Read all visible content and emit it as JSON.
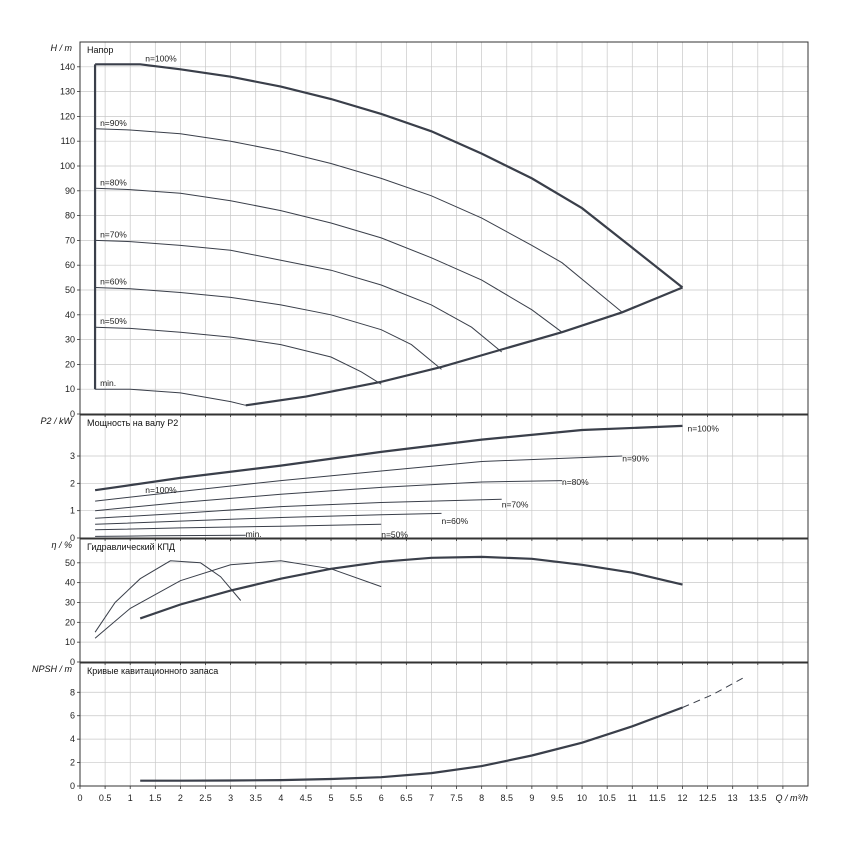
{
  "chart_data": [
    {
      "type": "line",
      "title": "Напор",
      "ylabel": "H / m",
      "xlim": [
        0,
        14.5
      ],
      "ylim": [
        0,
        150
      ],
      "y_ticks": [
        0,
        10,
        20,
        30,
        40,
        50,
        60,
        70,
        80,
        90,
        100,
        110,
        120,
        130,
        140
      ],
      "grid": true,
      "curve_labels": [
        "n=100%",
        "n=90%",
        "n=80%",
        "n=70%",
        "n=60%",
        "n=50%",
        "min."
      ],
      "series": [
        {
          "name": "n=100%",
          "x": [
            0.3,
            1.2,
            2.0,
            3.0,
            4.0,
            5.0,
            6.0,
            7.0,
            8.0,
            9.0,
            10.0,
            11.0,
            12.0
          ],
          "y": [
            141,
            141,
            139,
            136,
            132,
            127,
            121,
            114,
            105,
            95,
            83,
            67,
            51
          ]
        },
        {
          "name": "n=90%",
          "x": [
            0.3,
            1.0,
            2.0,
            3.0,
            4.0,
            5.0,
            6.0,
            7.0,
            8.0,
            9.0,
            9.6,
            10.8
          ],
          "y": [
            115,
            114.5,
            113,
            110,
            106,
            101,
            95,
            88,
            79,
            68,
            61,
            41
          ]
        },
        {
          "name": "n=80%",
          "x": [
            0.3,
            1.0,
            2.0,
            3.0,
            4.0,
            5.0,
            6.0,
            7.0,
            8.0,
            9.0,
            9.6
          ],
          "y": [
            91,
            90.5,
            89,
            86,
            82,
            77,
            71,
            63,
            54,
            42,
            33
          ]
        },
        {
          "name": "n=70%",
          "x": [
            0.3,
            1.0,
            2.0,
            3.0,
            4.0,
            5.0,
            6.0,
            7.0,
            7.8,
            8.4
          ],
          "y": [
            70,
            69.5,
            68,
            66,
            62,
            58,
            52,
            44,
            35,
            25
          ]
        },
        {
          "name": "n=60%",
          "x": [
            0.3,
            1.0,
            2.0,
            3.0,
            4.0,
            5.0,
            6.0,
            6.6,
            7.2
          ],
          "y": [
            51,
            50.5,
            49,
            47,
            44,
            40,
            34,
            28,
            18
          ]
        },
        {
          "name": "n=50%",
          "x": [
            0.3,
            1.0,
            2.0,
            3.0,
            4.0,
            5.0,
            5.6,
            6.0
          ],
          "y": [
            35,
            34.5,
            33,
            31,
            28,
            23,
            17,
            12
          ]
        },
        {
          "name": "min.",
          "x": [
            0.3,
            1.0,
            2.0,
            3.0,
            3.3
          ],
          "y": [
            10,
            10,
            8.5,
            5,
            3.5
          ]
        }
      ],
      "envelope_lower": {
        "x": [
          3.3,
          4.5,
          6.0,
          7.2,
          8.4,
          9.6,
          10.8,
          12.0
        ],
        "y": [
          3.5,
          7,
          13,
          19,
          26,
          33,
          41,
          51
        ]
      }
    },
    {
      "type": "line",
      "title": "Мощность на валу P2",
      "ylabel": "P2 / kW",
      "xlim": [
        0,
        14.5
      ],
      "ylim": [
        0,
        4.5
      ],
      "y_ticks": [
        0,
        1,
        2,
        3
      ],
      "grid": true,
      "curve_labels": [
        "n=100%",
        "n=100%",
        "n=90%",
        "n=80%",
        "n=70%",
        "n=60%",
        "n=50%",
        "min."
      ],
      "series": [
        {
          "name": "n=100%",
          "x": [
            0.3,
            2.0,
            4.0,
            6.0,
            8.0,
            10.0,
            12.0
          ],
          "y": [
            1.75,
            2.2,
            2.65,
            3.15,
            3.6,
            3.95,
            4.1
          ]
        },
        {
          "name": "n=90%",
          "x": [
            0.3,
            2.0,
            4.0,
            6.0,
            8.0,
            10.8
          ],
          "y": [
            1.35,
            1.7,
            2.1,
            2.45,
            2.8,
            3.0
          ]
        },
        {
          "name": "n=80%",
          "x": [
            0.3,
            2.0,
            4.0,
            6.0,
            8.0,
            9.6
          ],
          "y": [
            1.0,
            1.3,
            1.6,
            1.85,
            2.05,
            2.1
          ]
        },
        {
          "name": "n=70%",
          "x": [
            0.3,
            2.0,
            4.0,
            6.0,
            8.4
          ],
          "y": [
            0.72,
            0.9,
            1.15,
            1.3,
            1.42
          ]
        },
        {
          "name": "n=60%",
          "x": [
            0.3,
            2.0,
            4.0,
            6.0,
            7.2
          ],
          "y": [
            0.5,
            0.62,
            0.75,
            0.85,
            0.9
          ]
        },
        {
          "name": "n=50%",
          "x": [
            0.3,
            2.0,
            4.0,
            6.0
          ],
          "y": [
            0.3,
            0.37,
            0.43,
            0.5
          ]
        },
        {
          "name": "min.",
          "x": [
            0.3,
            1.5,
            3.3
          ],
          "y": [
            0.06,
            0.08,
            0.1
          ]
        }
      ]
    },
    {
      "type": "line",
      "title": "Гидравлический КПД",
      "ylabel": "η / %",
      "xlim": [
        0,
        14.5
      ],
      "ylim": [
        0,
        62
      ],
      "y_ticks": [
        0,
        10,
        20,
        30,
        40,
        50
      ],
      "grid": true,
      "series": [
        {
          "name": "n=100%",
          "x": [
            1.2,
            2.0,
            3.0,
            4.0,
            5.0,
            6.0,
            7.0,
            8.0,
            9.0,
            10.0,
            11.0,
            12.0
          ],
          "y": [
            22,
            29,
            36,
            42,
            47,
            50.5,
            52.5,
            53,
            52,
            49,
            45,
            39
          ]
        },
        {
          "name": "min.",
          "x": [
            0.3,
            0.7,
            1.2,
            1.8,
            2.4,
            2.8,
            3.2
          ],
          "y": [
            15,
            30,
            42,
            51,
            50,
            43,
            31
          ]
        },
        {
          "name": "n=50%",
          "x": [
            0.3,
            1.0,
            2.0,
            3.0,
            4.0,
            5.0,
            6.0
          ],
          "y": [
            12,
            27,
            41,
            49,
            51,
            47,
            38
          ]
        }
      ]
    },
    {
      "type": "line",
      "title": "Кривые кавитационного запаса",
      "ylabel": "NPSH / m",
      "xlabel": "Q / m³/h",
      "xlim": [
        0,
        14.5
      ],
      "ylim": [
        0,
        10.5
      ],
      "y_ticks": [
        0,
        2,
        4,
        6,
        8
      ],
      "x_ticks": [
        "0",
        "0.5",
        "1",
        "1.5",
        "2",
        "2.5",
        "3",
        "3.5",
        "4",
        "4.5",
        "5",
        "5.5",
        "6",
        "6.5",
        "7",
        "7.5",
        "8",
        "8.5",
        "9",
        "9.5",
        "10",
        "10.5",
        "11",
        "11.5",
        "12",
        "12.5",
        "13",
        "13.5"
      ],
      "grid": true,
      "series": [
        {
          "name": "NPSH",
          "x": [
            1.2,
            2.0,
            3.0,
            4.0,
            5.0,
            6.0,
            7.0,
            8.0,
            9.0,
            10.0,
            11.0,
            12.0
          ],
          "y": [
            0.45,
            0.45,
            0.47,
            0.5,
            0.6,
            0.75,
            1.1,
            1.7,
            2.6,
            3.7,
            5.1,
            6.7
          ]
        },
        {
          "name": "NPSH-ext",
          "x": [
            12.0,
            12.6,
            13.2
          ],
          "y": [
            6.7,
            7.8,
            9.2
          ]
        }
      ]
    }
  ]
}
